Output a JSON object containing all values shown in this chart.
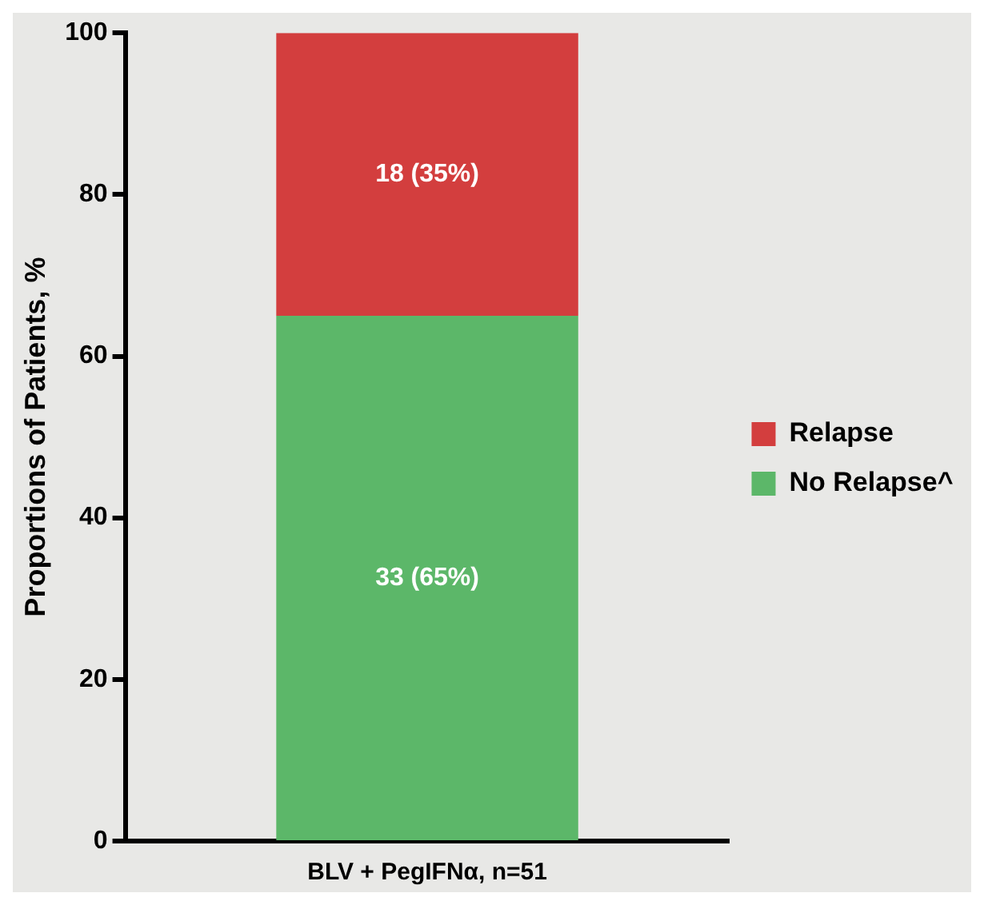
{
  "chart_data": {
    "type": "bar",
    "stacked": true,
    "categories": [
      "BLV + PegIFNα, n=51"
    ],
    "ylabel": "Proportions of Patients, %",
    "ylim": [
      0,
      100
    ],
    "yticks": [
      0,
      20,
      40,
      60,
      80,
      100
    ],
    "grid": false,
    "legend": "right",
    "series": [
      {
        "name": "No Relapse^",
        "color": "#5cb769",
        "values": [
          65
        ],
        "value_labels": [
          "33 (65%)"
        ]
      },
      {
        "name": "Relapse",
        "color": "#d33e3e",
        "values": [
          35
        ],
        "value_labels": [
          "18 (35%)"
        ]
      }
    ]
  }
}
